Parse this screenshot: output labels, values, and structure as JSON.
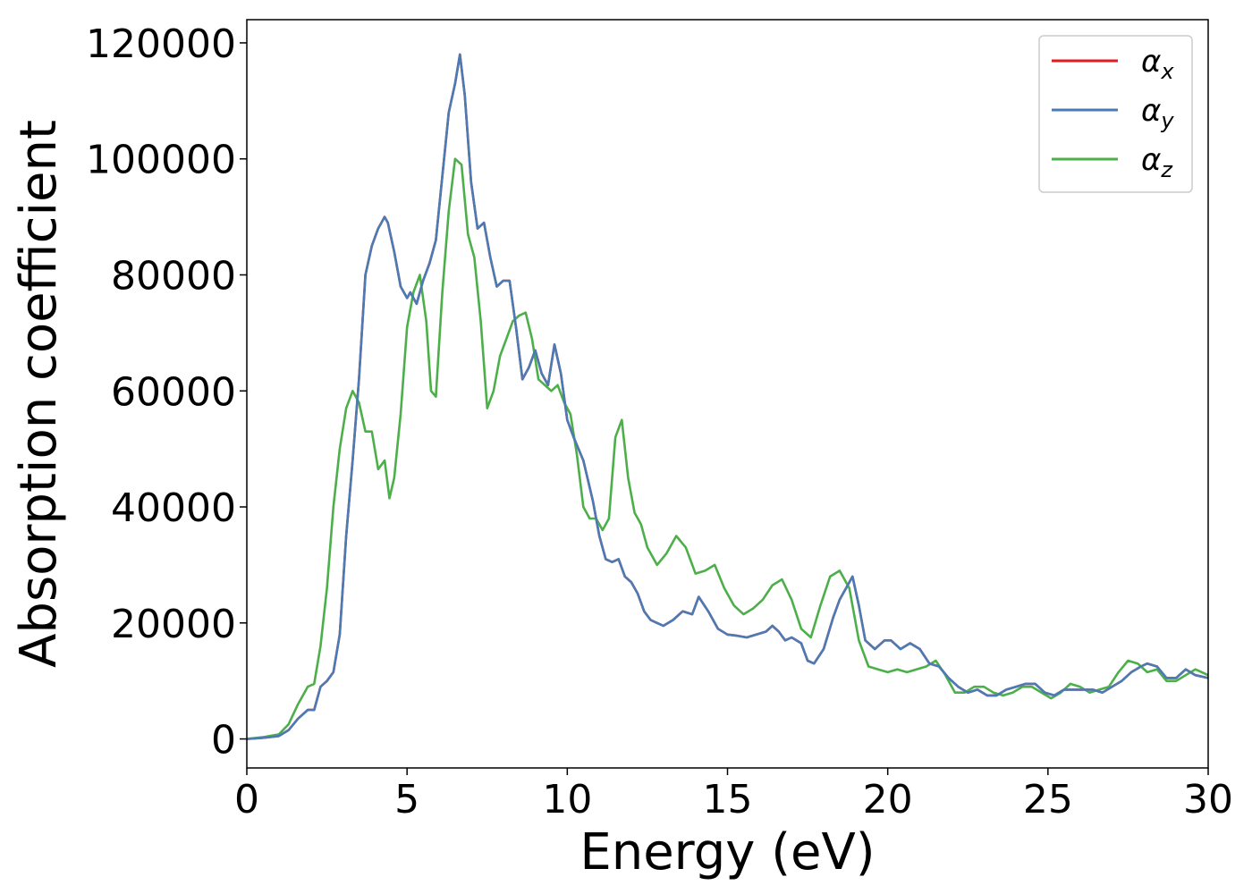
{
  "chart_data": {
    "type": "line",
    "title": "",
    "xlabel": "Energy (eV)",
    "ylabel": "Absorption coefficient",
    "xlim": [
      0,
      30
    ],
    "ylim": [
      -5000,
      124000
    ],
    "xticks": [
      0,
      5,
      10,
      15,
      20,
      25,
      30
    ],
    "xtick_labels": [
      "0",
      "5",
      "10",
      "15",
      "20",
      "25",
      "30"
    ],
    "yticks": [
      0,
      20000,
      40000,
      60000,
      80000,
      100000,
      120000
    ],
    "ytick_labels": [
      "0",
      "20000",
      "40000",
      "60000",
      "80000",
      "100000",
      "120000"
    ],
    "grid": false,
    "legend_position": "top-right",
    "series": [
      {
        "name": "α_x",
        "label_base": "α",
        "label_sub": "x",
        "color": "#e41a1c",
        "x": [
          0,
          0.5,
          1,
          1.3,
          1.6,
          1.9,
          2.1,
          2.3,
          2.5,
          2.7,
          2.9,
          3.1,
          3.3,
          3.5,
          3.7,
          3.9,
          4.1,
          4.3,
          4.4,
          4.6,
          4.8,
          5.0,
          5.1,
          5.3,
          5.5,
          5.7,
          5.9,
          6.1,
          6.3,
          6.5,
          6.65,
          6.8,
          7.0,
          7.2,
          7.4,
          7.6,
          7.8,
          8.0,
          8.2,
          8.4,
          8.6,
          8.8,
          9.0,
          9.2,
          9.4,
          9.6,
          9.8,
          10.0,
          10.2,
          10.5,
          10.8,
          11.0,
          11.2,
          11.4,
          11.6,
          11.8,
          12.0,
          12.2,
          12.4,
          12.6,
          12.8,
          13.0,
          13.3,
          13.6,
          13.9,
          14.1,
          14.4,
          14.7,
          15.0,
          15.3,
          15.6,
          15.9,
          16.2,
          16.4,
          16.6,
          16.8,
          17.0,
          17.3,
          17.5,
          17.7,
          18.0,
          18.3,
          18.5,
          18.7,
          18.9,
          19.1,
          19.3,
          19.6,
          19.9,
          20.1,
          20.4,
          20.7,
          21.0,
          21.3,
          21.6,
          21.9,
          22.2,
          22.5,
          22.8,
          23.1,
          23.4,
          23.7,
          24.0,
          24.3,
          24.6,
          24.9,
          25.2,
          25.5,
          25.8,
          26.1,
          26.4,
          26.7,
          27.0,
          27.3,
          27.6,
          27.9,
          28.1,
          28.4,
          28.7,
          29.0,
          29.3,
          29.6,
          30.0
        ],
        "y": [
          0,
          200,
          500,
          1500,
          3500,
          5000,
          5000,
          9000,
          10000,
          11500,
          18000,
          35000,
          48000,
          62000,
          80000,
          85000,
          88000,
          90000,
          89000,
          84000,
          78000,
          76000,
          77000,
          75000,
          79000,
          82000,
          86000,
          97000,
          108000,
          113000,
          118000,
          111000,
          96000,
          88000,
          89000,
          83000,
          78000,
          79000,
          79000,
          71000,
          62000,
          64000,
          67000,
          63000,
          61000,
          68000,
          63000,
          55000,
          52000,
          48000,
          41000,
          35000,
          31000,
          30500,
          31000,
          28000,
          27000,
          25000,
          22000,
          20500,
          20000,
          19500,
          20500,
          22000,
          21500,
          24500,
          22000,
          19000,
          18000,
          17800,
          17500,
          18000,
          18500,
          19500,
          18500,
          17000,
          17500,
          16500,
          13500,
          13000,
          15500,
          21000,
          24000,
          26000,
          28000,
          23000,
          17000,
          15500,
          17000,
          17000,
          15500,
          16500,
          15500,
          13000,
          12500,
          10500,
          9000,
          8000,
          8500,
          7500,
          7500,
          8500,
          9000,
          9500,
          9500,
          8000,
          7500,
          8500,
          8500,
          8500,
          8500,
          8000,
          9000,
          10000,
          11500,
          12500,
          13000,
          12500,
          10500,
          10500,
          12000,
          11000,
          10500
        ]
      },
      {
        "name": "α_y",
        "label_base": "α",
        "label_sub": "y",
        "color": "#4a7bb5",
        "x": [
          0,
          0.5,
          1,
          1.3,
          1.6,
          1.9,
          2.1,
          2.3,
          2.5,
          2.7,
          2.9,
          3.1,
          3.3,
          3.5,
          3.7,
          3.9,
          4.1,
          4.3,
          4.4,
          4.6,
          4.8,
          5.0,
          5.1,
          5.3,
          5.5,
          5.7,
          5.9,
          6.1,
          6.3,
          6.5,
          6.65,
          6.8,
          7.0,
          7.2,
          7.4,
          7.6,
          7.8,
          8.0,
          8.2,
          8.4,
          8.6,
          8.8,
          9.0,
          9.2,
          9.4,
          9.6,
          9.8,
          10.0,
          10.2,
          10.5,
          10.8,
          11.0,
          11.2,
          11.4,
          11.6,
          11.8,
          12.0,
          12.2,
          12.4,
          12.6,
          12.8,
          13.0,
          13.3,
          13.6,
          13.9,
          14.1,
          14.4,
          14.7,
          15.0,
          15.3,
          15.6,
          15.9,
          16.2,
          16.4,
          16.6,
          16.8,
          17.0,
          17.3,
          17.5,
          17.7,
          18.0,
          18.3,
          18.5,
          18.7,
          18.9,
          19.1,
          19.3,
          19.6,
          19.9,
          20.1,
          20.4,
          20.7,
          21.0,
          21.3,
          21.6,
          21.9,
          22.2,
          22.5,
          22.8,
          23.1,
          23.4,
          23.7,
          24.0,
          24.3,
          24.6,
          24.9,
          25.2,
          25.5,
          25.8,
          26.1,
          26.4,
          26.7,
          27.0,
          27.3,
          27.6,
          27.9,
          28.1,
          28.4,
          28.7,
          29.0,
          29.3,
          29.6,
          30.0
        ],
        "y": [
          0,
          200,
          500,
          1500,
          3500,
          5000,
          5000,
          9000,
          10000,
          11500,
          18000,
          35000,
          48000,
          62000,
          80000,
          85000,
          88000,
          90000,
          89000,
          84000,
          78000,
          76000,
          77000,
          75000,
          79000,
          82000,
          86000,
          97000,
          108000,
          113000,
          118000,
          111000,
          96000,
          88000,
          89000,
          83000,
          78000,
          79000,
          79000,
          71000,
          62000,
          64000,
          67000,
          63000,
          61000,
          68000,
          63000,
          55000,
          52000,
          48000,
          41000,
          35000,
          31000,
          30500,
          31000,
          28000,
          27000,
          25000,
          22000,
          20500,
          20000,
          19500,
          20500,
          22000,
          21500,
          24500,
          22000,
          19000,
          18000,
          17800,
          17500,
          18000,
          18500,
          19500,
          18500,
          17000,
          17500,
          16500,
          13500,
          13000,
          15500,
          21000,
          24000,
          26000,
          28000,
          23000,
          17000,
          15500,
          17000,
          17000,
          15500,
          16500,
          15500,
          13000,
          12500,
          10500,
          9000,
          8000,
          8500,
          7500,
          7500,
          8500,
          9000,
          9500,
          9500,
          8000,
          7500,
          8500,
          8500,
          8500,
          8500,
          8000,
          9000,
          10000,
          11500,
          12500,
          13000,
          12500,
          10500,
          10500,
          12000,
          11000,
          10500
        ]
      },
      {
        "name": "α_z",
        "label_base": "α",
        "label_sub": "z",
        "color": "#4daf4a",
        "x": [
          0,
          0.5,
          1,
          1.3,
          1.6,
          1.9,
          2.1,
          2.3,
          2.5,
          2.7,
          2.9,
          3.1,
          3.3,
          3.5,
          3.7,
          3.9,
          4.1,
          4.3,
          4.45,
          4.6,
          4.8,
          5.0,
          5.2,
          5.4,
          5.6,
          5.75,
          5.9,
          6.1,
          6.3,
          6.5,
          6.7,
          6.9,
          7.1,
          7.3,
          7.5,
          7.7,
          7.9,
          8.1,
          8.3,
          8.5,
          8.7,
          8.9,
          9.1,
          9.3,
          9.5,
          9.7,
          9.9,
          10.1,
          10.3,
          10.5,
          10.7,
          10.9,
          11.1,
          11.3,
          11.5,
          11.7,
          11.9,
          12.1,
          12.3,
          12.5,
          12.8,
          13.1,
          13.4,
          13.7,
          14.0,
          14.3,
          14.6,
          14.9,
          15.2,
          15.5,
          15.8,
          16.1,
          16.4,
          16.7,
          17.0,
          17.3,
          17.6,
          17.9,
          18.2,
          18.5,
          18.8,
          19.1,
          19.4,
          19.7,
          20.0,
          20.3,
          20.6,
          20.9,
          21.2,
          21.5,
          21.8,
          22.1,
          22.4,
          22.7,
          23.0,
          23.3,
          23.6,
          23.9,
          24.2,
          24.5,
          24.8,
          25.1,
          25.4,
          25.7,
          26.0,
          26.3,
          26.6,
          26.9,
          27.2,
          27.5,
          27.8,
          28.1,
          28.4,
          28.7,
          29.0,
          29.3,
          29.6,
          30.0
        ],
        "y": [
          0,
          300,
          800,
          2500,
          6000,
          9000,
          9500,
          16000,
          26000,
          40000,
          50000,
          57000,
          60000,
          58000,
          53000,
          53000,
          46500,
          48000,
          41500,
          45000,
          56000,
          71000,
          77000,
          80000,
          72000,
          60000,
          59000,
          77000,
          91000,
          100000,
          99000,
          87000,
          83000,
          72000,
          57000,
          60000,
          66000,
          69000,
          72000,
          73000,
          73500,
          69000,
          62000,
          61000,
          60000,
          61000,
          58000,
          56000,
          49000,
          40000,
          38000,
          38000,
          36000,
          38000,
          52000,
          55000,
          45000,
          39000,
          37000,
          33000,
          30000,
          32000,
          35000,
          33000,
          28500,
          29000,
          30000,
          26000,
          23000,
          21500,
          22500,
          24000,
          26500,
          27500,
          24000,
          19000,
          17500,
          23000,
          28000,
          29000,
          26000,
          17000,
          12500,
          12000,
          11500,
          12000,
          11500,
          12000,
          12500,
          13500,
          11000,
          8000,
          8000,
          9000,
          9000,
          8000,
          7500,
          8000,
          9000,
          9000,
          8000,
          7000,
          8000,
          9500,
          9000,
          8000,
          8500,
          9000,
          11500,
          13500,
          13000,
          11500,
          12000,
          10000,
          10000,
          11000,
          12000,
          11000
        ]
      }
    ]
  }
}
